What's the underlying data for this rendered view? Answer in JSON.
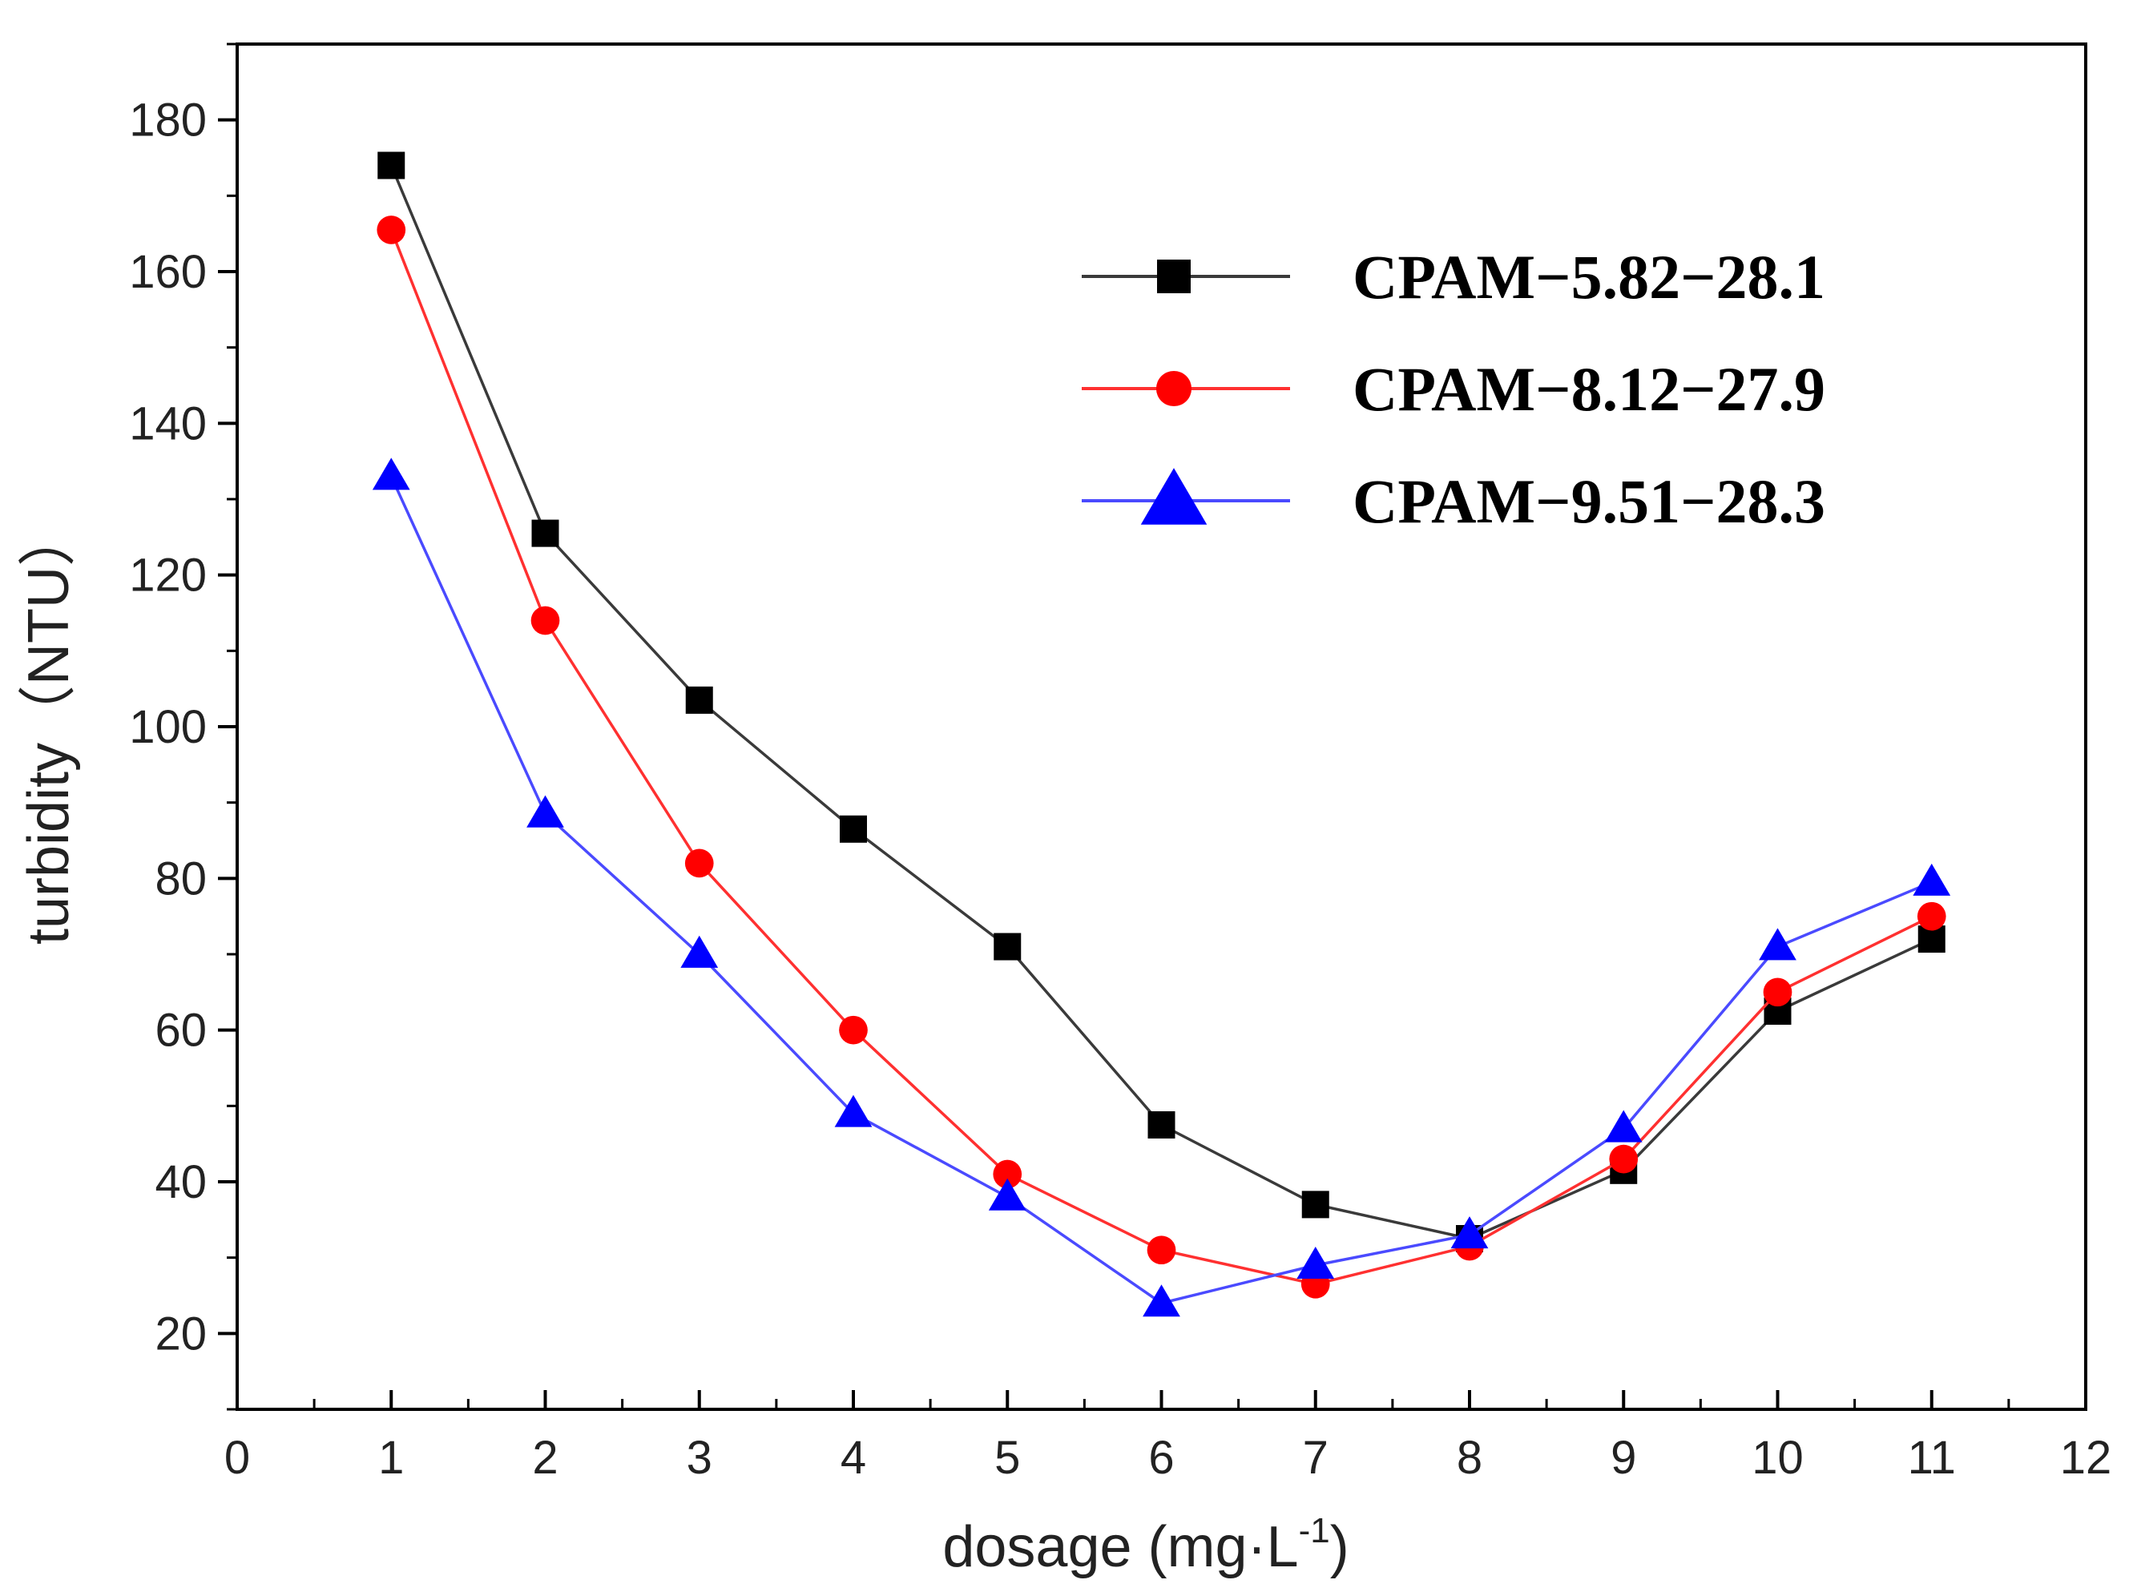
{
  "chart_data": {
    "type": "line",
    "title": "",
    "xlabel": "dosage (mg·L",
    "xlabel_superscript": "-1",
    "xlabel_close": ")",
    "ylabel": "turbidity（NTU）",
    "xlim": [
      0,
      12
    ],
    "ylim": [
      10,
      190
    ],
    "xticks": [
      0,
      1,
      2,
      3,
      4,
      5,
      6,
      7,
      8,
      9,
      10,
      11,
      12
    ],
    "xtick_labels": [
      "0",
      "1",
      "2",
      "3",
      "4",
      "5",
      "6",
      "7",
      "8",
      "9",
      "10",
      "11",
      "12"
    ],
    "yticks": [
      20,
      40,
      60,
      80,
      100,
      120,
      140,
      160,
      180
    ],
    "ytick_labels": [
      "20",
      "40",
      "60",
      "80",
      "100",
      "120",
      "140",
      "160",
      "180"
    ],
    "grid": false,
    "legend_position": "top-right",
    "x": [
      1,
      2,
      3,
      4,
      5,
      6,
      7,
      8,
      9,
      10,
      11
    ],
    "series": [
      {
        "name": "CPAM−5.82−28.1",
        "color": "#000000",
        "line_color": "#3a3a3a",
        "marker": "square",
        "values": [
          174,
          125.5,
          103.5,
          86.5,
          71,
          47.5,
          37,
          32.5,
          41.5,
          62.5,
          72
        ]
      },
      {
        "name": "CPAM−8.12−27.9",
        "color": "#ff0000",
        "line_color": "#ff3030",
        "marker": "circle",
        "values": [
          165.5,
          114,
          82,
          60,
          41,
          31,
          26.5,
          31.5,
          43,
          65,
          75
        ]
      },
      {
        "name": "CPAM−9.51−28.3",
        "color": "#0000ff",
        "line_color": "#4a4aff",
        "marker": "triangle",
        "values": [
          133,
          88.5,
          70,
          49,
          38,
          24,
          29,
          33,
          47,
          71,
          79.5
        ]
      }
    ]
  }
}
